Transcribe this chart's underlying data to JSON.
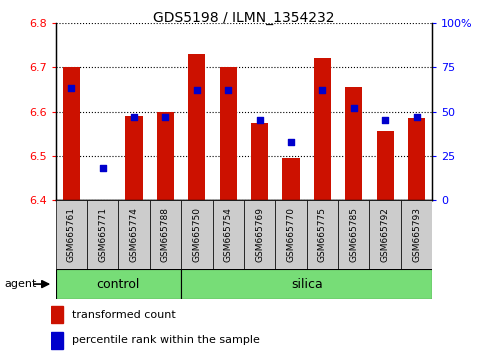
{
  "title": "GDS5198 / ILMN_1354232",
  "samples": [
    "GSM665761",
    "GSM665771",
    "GSM665774",
    "GSM665788",
    "GSM665750",
    "GSM665754",
    "GSM665769",
    "GSM665770",
    "GSM665775",
    "GSM665785",
    "GSM665792",
    "GSM665793"
  ],
  "bar_values": [
    6.7,
    6.4,
    6.59,
    6.6,
    6.73,
    6.7,
    6.575,
    6.495,
    6.72,
    6.655,
    6.555,
    6.585
  ],
  "bar_bottom": 6.4,
  "percentile_values": [
    63,
    18,
    47,
    47,
    62,
    62,
    45,
    33,
    62,
    52,
    45,
    47
  ],
  "control_count": 4,
  "silica_count": 8,
  "ylim_left": [
    6.4,
    6.8
  ],
  "ylim_right": [
    0,
    100
  ],
  "yticks_left": [
    6.4,
    6.5,
    6.6,
    6.7,
    6.8
  ],
  "yticks_right": [
    0,
    25,
    50,
    75,
    100
  ],
  "ytick_right_labels": [
    "0",
    "25",
    "50",
    "75",
    "100%"
  ],
  "bar_color": "#CC1100",
  "dot_color": "#0000CC",
  "green_color": "#77DD77",
  "gray_color": "#CCCCCC",
  "agent_label": "agent",
  "control_label": "control",
  "silica_label": "silica",
  "legend_bar_label": "transformed count",
  "legend_dot_label": "percentile rank within the sample",
  "bar_width": 0.55
}
